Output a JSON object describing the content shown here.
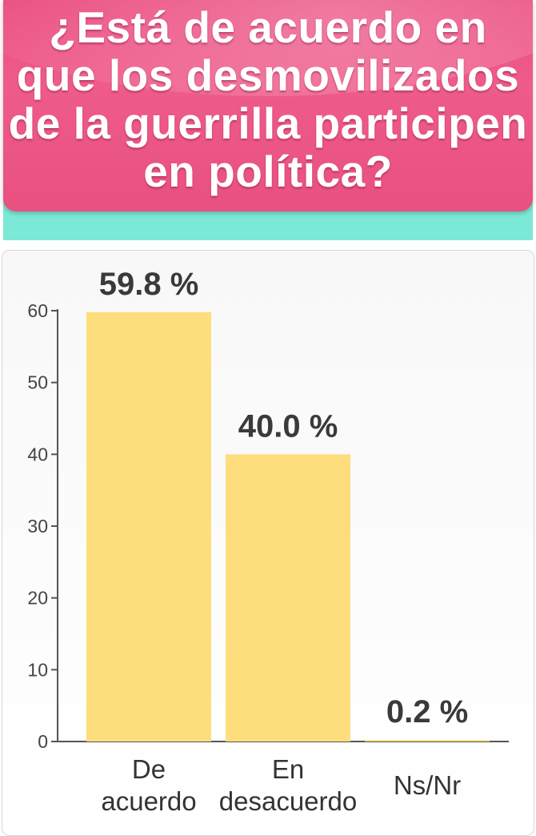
{
  "title": "¿Está de acuerdo en que los desmovilizados de la guerrilla participen en política?",
  "chart_data": {
    "type": "bar",
    "categories": [
      [
        "De",
        "acuerdo"
      ],
      [
        "En",
        "desacuerdo"
      ],
      [
        "Ns/Nr"
      ]
    ],
    "values": [
      59.8,
      40.0,
      0.2
    ],
    "data_labels": [
      "59.8 %",
      "40.0 %",
      "0.2 %"
    ],
    "ylim": [
      0,
      60
    ],
    "yticks": [
      0,
      10,
      20,
      30,
      40,
      50,
      60
    ],
    "bar_color": "#fede7c",
    "grid": false,
    "legend": "none"
  },
  "colors": {
    "header_pink": "#ea4a7e",
    "header_band": "#7ce8d6",
    "bar": "#fede7c"
  }
}
